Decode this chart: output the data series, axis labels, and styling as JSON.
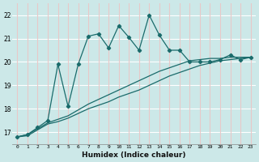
{
  "xlabel": "Humidex (Indice chaleur)",
  "bg_color": "#cce8e8",
  "line_color": "#1a6b6b",
  "ylim": [
    16.5,
    22.5
  ],
  "xlim": [
    -0.5,
    23.5
  ],
  "yticks": [
    17,
    18,
    19,
    20,
    21,
    22
  ],
  "xticks": [
    0,
    1,
    2,
    3,
    4,
    5,
    6,
    7,
    8,
    9,
    10,
    11,
    12,
    13,
    14,
    15,
    16,
    17,
    18,
    19,
    20,
    21,
    22,
    23
  ],
  "x_main": [
    0,
    1,
    2,
    3,
    4,
    5,
    6,
    7,
    8,
    9,
    10,
    11,
    12,
    13,
    14,
    15,
    16,
    17,
    18,
    19,
    20,
    21,
    22,
    23
  ],
  "y_main": [
    16.8,
    16.9,
    17.2,
    17.5,
    19.9,
    18.1,
    19.9,
    21.1,
    21.2,
    20.6,
    21.55,
    21.05,
    20.5,
    22.0,
    21.15,
    20.5,
    20.5,
    20.0,
    20.0,
    20.0,
    20.1,
    20.3,
    20.1,
    20.2
  ],
  "x_lower": [
    0,
    1,
    2,
    3,
    4,
    5,
    6,
    7,
    8,
    9,
    10,
    11,
    12,
    13,
    14,
    15,
    16,
    17,
    18,
    19,
    20,
    21,
    22,
    23
  ],
  "y_lower": [
    16.8,
    16.85,
    17.1,
    17.35,
    17.45,
    17.6,
    17.8,
    18.0,
    18.15,
    18.3,
    18.5,
    18.65,
    18.8,
    19.0,
    19.2,
    19.4,
    19.55,
    19.7,
    19.85,
    19.95,
    20.05,
    20.1,
    20.15,
    20.2
  ],
  "x_upper": [
    0,
    1,
    2,
    3,
    4,
    5,
    6,
    7,
    8,
    9,
    10,
    11,
    12,
    13,
    14,
    15,
    16,
    17,
    18,
    19,
    20,
    21,
    22,
    23
  ],
  "y_upper": [
    16.8,
    16.9,
    17.15,
    17.4,
    17.55,
    17.7,
    17.95,
    18.2,
    18.4,
    18.6,
    18.8,
    19.0,
    19.2,
    19.4,
    19.6,
    19.75,
    19.9,
    20.05,
    20.1,
    20.15,
    20.15,
    20.2,
    20.2,
    20.2
  ],
  "vgrid_color": "#e8c8c8",
  "hgrid_color": "#ffffff"
}
